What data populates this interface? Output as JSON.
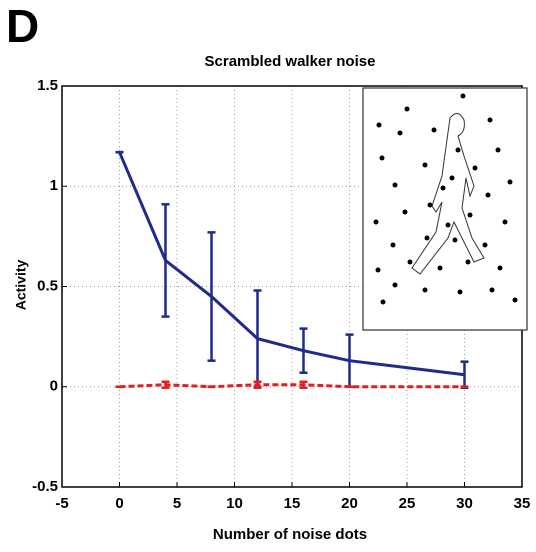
{
  "chart_data": {
    "type": "line",
    "panel_label": "D",
    "title": "Scrambled walker noise",
    "x_label": "Number of noise dots",
    "y_label": "Activity",
    "x": [
      0,
      4,
      8,
      12,
      16,
      20,
      30
    ],
    "series": [
      {
        "color": "#1f2a8c",
        "dashed": false,
        "values": [
          1.17,
          0.63,
          0.45,
          0.24,
          0.18,
          0.13,
          0.06
        ],
        "errors": [
          0,
          0.28,
          0.32,
          0.24,
          0.11,
          0.13,
          0.065
        ]
      },
      {
        "color": "#e02020",
        "dashed": true,
        "values": [
          0,
          0.01,
          0,
          0.01,
          0.01,
          0,
          0
        ],
        "errors": [
          0,
          0.015,
          0,
          0.015,
          0.015,
          0,
          0
        ]
      }
    ],
    "xlim": [
      -5,
      35
    ],
    "xticks": [
      -5,
      0,
      5,
      10,
      15,
      20,
      25,
      30,
      35
    ],
    "ylim": [
      -0.5,
      1.5
    ],
    "yticks": [
      -0.5,
      0,
      0.5,
      1,
      1.5
    ],
    "grid": true
  }
}
